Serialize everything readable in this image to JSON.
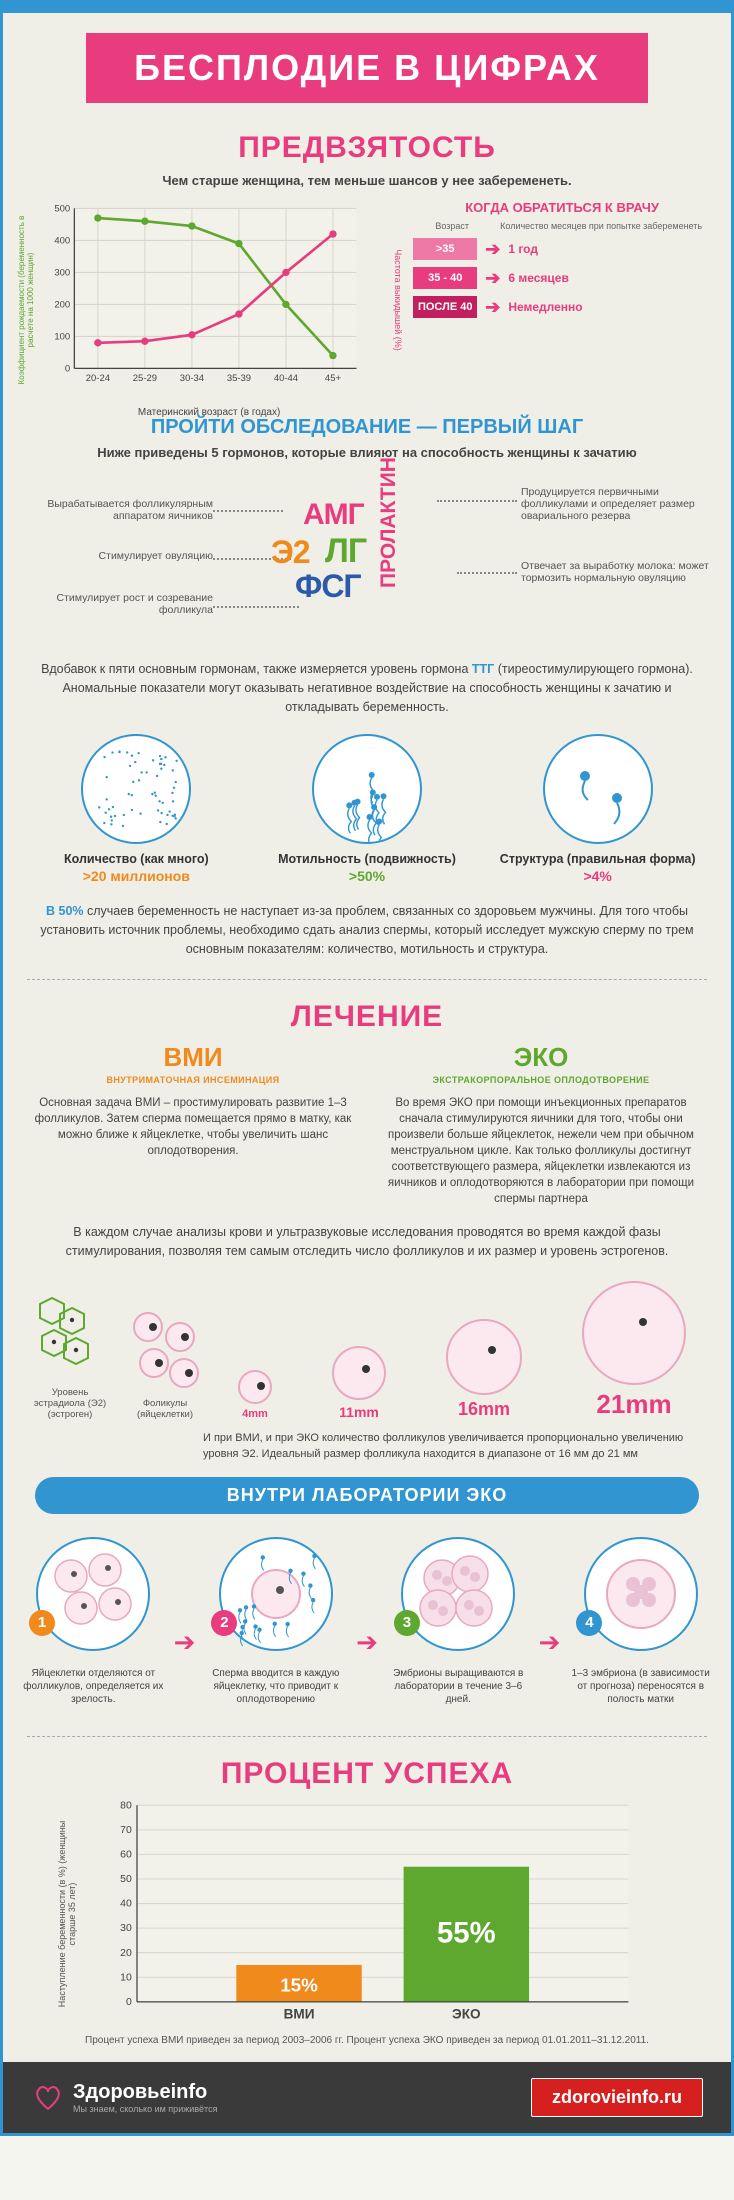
{
  "banner": {
    "title": "БЕСПЛОДИЕ В ЦИФРАХ",
    "bg": "#e83c7f"
  },
  "s1": {
    "title": "ПРЕДВЗЯТОСТЬ",
    "sub": "Чем старше женщина, тем меньше шансов у нее забеременеть.",
    "chart": {
      "ylabel_left": "Коэффициент рождаемости\n(беременность в расчете на 1000 женщин)",
      "ylabel_right": "Частота выкидышей (%)",
      "xlabel": "Материнский возраст (в годах)",
      "cats": [
        "20-24",
        "25-29",
        "30-34",
        "35-39",
        "40-44",
        "45+"
      ],
      "yticks": [
        0,
        100,
        200,
        300,
        400,
        500
      ],
      "green": [
        470,
        460,
        445,
        390,
        200,
        40
      ],
      "pink": [
        80,
        85,
        105,
        170,
        300,
        420
      ],
      "green_color": "#5fa82f",
      "pink_color": "#e83c7f",
      "grid": "#d8d6cc",
      "axis": "#444",
      "bg": "#f3f2ea"
    },
    "doctor": {
      "title": "КОГДА ОБРАТИТЬСЯ К ВРАЧУ",
      "col1": "Возраст",
      "col2": "Количество месяцев при попытке забеременеть",
      "rows": [
        {
          "age": ">35",
          "wait": "1 год",
          "chip": "#ee79a7"
        },
        {
          "age": "35 - 40",
          "wait": "6 месяцев",
          "chip": "#e83c7f"
        },
        {
          "age": "ПОСЛЕ 40",
          "wait": "Немедленно",
          "chip": "#c21f5e"
        }
      ]
    }
  },
  "s2": {
    "title": "ПРОЙТИ ОБСЛЕДОВАНИЕ — ПЕРВЫЙ ШАГ",
    "sub": "Ниже приведены 5 гормонов, которые влияют на способность женщины к зачатию",
    "words": {
      "amg": {
        "t": "АМГ",
        "c": "#e83c7f"
      },
      "e2": {
        "t": "Э2",
        "c": "#f08a1d"
      },
      "lg": {
        "t": "ЛГ",
        "c": "#5fa82f"
      },
      "fsg": {
        "t": "ФСГ",
        "c": "#2b5aa8"
      },
      "prl": {
        "t": "ПРОЛАКТИН",
        "c": "#e83c7f"
      }
    },
    "labels": {
      "l1": "Вырабатывается фолликулярным аппаратом яичников",
      "l2": "Стимулирует овуляцию",
      "l3": "Стимулирует рост и созревание фолликула",
      "r1": "Продуцируется первичными фолликулами и определяет размер овариального резерва",
      "r2": "Отвечает за выработку молока: может тормозить нормальную овуляцию"
    },
    "note_ttg": "Вдобавок к пяти основным гормонам, также измеряется уровень гормона ТТГ (тиреостимулирующего гормона). Аномальные показатели могут оказывать негативное воздействие на способность женщины к зачатию и откладывать беременность.",
    "sperm": [
      {
        "n": "Количество (как много)",
        "v": ">20 миллионов",
        "vc": "#f08a1d"
      },
      {
        "n": "Мотильность (подвижность)",
        "v": ">50%",
        "vc": "#5fa82f"
      },
      {
        "n": "Структура (правильная форма)",
        "v": ">4%",
        "vc": "#e83c7f"
      }
    ],
    "note50": "В 50% случаев беременность не наступает из-за проблем, связанных со здоровьем мужчины. Для того чтобы установить источник проблемы, необходимо сдать анализ спермы, который исследует мужскую сперму по трем основным показателям: количество, мотильность и структура."
  },
  "s3": {
    "title": "ЛЕЧЕНИЕ",
    "vmi": {
      "h": "ВМИ",
      "sub": "ВНУТРИМАТОЧНАЯ ИНСЕМИНАЦИЯ",
      "color": "#f08a1d",
      "desc": "Основная задача ВМИ – простимулировать развитие 1–3 фолликулов. Затем сперма помещается прямо в матку, как можно ближе к яйцеклетке, чтобы увеличить шанс оплодотворения."
    },
    "eko": {
      "h": "ЭКО",
      "sub": "ЭКСТРАКОРПОРАЛЬНОЕ ОПЛОДОТВОРЕНИЕ",
      "color": "#5fa82f",
      "desc": "Во время ЭКО при помощи инъекционных препаратов сначала стимулируются яичники для того, чтобы они произвели больше яйцеклеток, нежели чем при обычном менструальном цикле. Как только фолликулы достигнут соответствующего размера, яйцеклетки извлекаются из яичников и оплодотворяются в лаборатории при помощи спермы партнера"
    },
    "mid": "В каждом случае анализы крови и ультразвуковые исследования проводятся во время каждой фазы стимулирования, позволяя тем самым отследить число фолликулов и их размер и уровень эстрогенов.",
    "follicle_sizes": [
      "4mm",
      "11mm",
      "16mm",
      "21mm"
    ],
    "foll_note": "И при ВМИ, и при ЭКО количество фолликулов увеличивается пропорционально увеличению уровня Э2. Идеальный размер фолликула находится в диапазоне от 16 мм до 21 мм",
    "foll_left1": "Уровень эстрадиола (Э2) (эстроген)",
    "foll_left2": "Фоликулы (яйцеклетки)",
    "lab_title": "ВНУТРИ ЛАБОРАТОРИИ ЭКО",
    "lab": [
      {
        "n": "1",
        "c": "#f08a1d",
        "d": "Яйцеклетки отделяются от фолликулов, определяется их зрелость."
      },
      {
        "n": "2",
        "c": "#e83c7f",
        "d": "Сперма вводится в каждую яйцеклетку, что приводит к оплодотворению"
      },
      {
        "n": "3",
        "c": "#5fa82f",
        "d": "Эмбрионы выращиваются в лаборатории в течение 3–6 дней."
      },
      {
        "n": "4",
        "c": "#3095d0",
        "d": "1–3 эмбриона (в зависимости от прогноза) переносятся в полость матки"
      }
    ]
  },
  "s4": {
    "title": "ПРОЦЕНТ УСПЕХА",
    "chart": {
      "ylabel": "Наступление беременности (в %) (женщины старше 35 лет)",
      "yticks": [
        0,
        10,
        20,
        30,
        40,
        50,
        60,
        70,
        80
      ],
      "bars": [
        {
          "label": "ВМИ",
          "val": 15,
          "text": "15%",
          "fill": "#f08a1d"
        },
        {
          "label": "ЭКО",
          "val": 55,
          "text": "55%",
          "fill": "#5fa82f"
        }
      ],
      "grid": "#d8d6cc",
      "axis": "#444",
      "bg": "#f3f2ea"
    },
    "note": "Процент успеха ВМИ приведен за период 2003–2006 гг. Процент успеха ЭКО приведен за период 01.01.2011–31.12.2011."
  },
  "footer": {
    "brand": "Здоровьеinfo",
    "tag": "Мы знаем, сколько им приживётся",
    "url": "zdorovieinfo.ru"
  }
}
